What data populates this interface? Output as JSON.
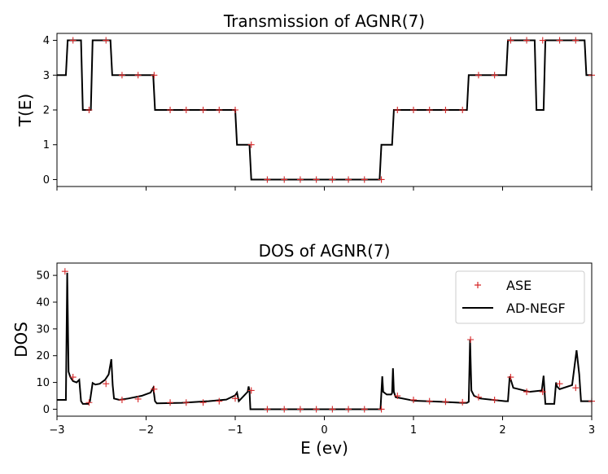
{
  "chart_data": [
    {
      "type": "line",
      "title": "Transmission of AGNR(7)",
      "xlabel": "",
      "ylabel": "T(E)",
      "xlim": [
        -3,
        3
      ],
      "ylim": [
        -0.2,
        4.2
      ],
      "x_ticks": [
        -3,
        -2,
        -1,
        0,
        1,
        2,
        3
      ],
      "y_ticks": [
        0,
        1,
        2,
        3,
        4
      ],
      "y_tick_labels": [
        "0",
        "1",
        "2",
        "3",
        "4"
      ],
      "series": [
        {
          "name": "AD-NEGF",
          "style": "line",
          "color": "#000000",
          "x": [
            -3.0,
            -2.9,
            -2.88,
            -2.73,
            -2.71,
            -2.62,
            -2.6,
            -2.4,
            -2.38,
            -1.92,
            -1.9,
            -1.0,
            -0.98,
            -0.84,
            -0.82,
            0.62,
            0.64,
            0.76,
            0.78,
            1.6,
            1.62,
            2.04,
            2.06,
            2.36,
            2.38,
            2.46,
            2.48,
            2.76,
            2.78,
            2.92,
            2.94,
            3.0
          ],
          "y": [
            3,
            3,
            4,
            4,
            2,
            2,
            4,
            4,
            3,
            3,
            2,
            2,
            1,
            1,
            0,
            0,
            1,
            1,
            2,
            2,
            3,
            3,
            4,
            4,
            2,
            2,
            4,
            4,
            4,
            4,
            3,
            3
          ]
        },
        {
          "name": "ASE",
          "style": "marker",
          "marker": "+",
          "color": "#d62728",
          "x": [
            -2.82,
            -2.64,
            -2.45,
            -2.27,
            -2.09,
            -1.91,
            -1.73,
            -1.55,
            -1.36,
            -1.18,
            -1.0,
            -0.82,
            -0.64,
            -0.45,
            -0.27,
            -0.09,
            0.09,
            0.27,
            0.45,
            0.64,
            0.82,
            1.0,
            1.18,
            1.36,
            1.55,
            1.73,
            1.91,
            2.09,
            2.27,
            2.45,
            2.64,
            2.82,
            3.0
          ],
          "y": [
            4,
            2,
            4,
            3,
            3,
            3,
            2,
            2,
            2,
            2,
            2,
            1,
            0,
            0,
            0,
            0,
            0,
            0,
            0,
            0,
            2,
            2,
            2,
            2,
            2,
            3,
            3,
            4,
            4,
            4,
            4,
            4,
            3
          ]
        }
      ]
    },
    {
      "type": "line",
      "title": "DOS of AGNR(7)",
      "xlabel": "E (ev)",
      "ylabel": "DOS",
      "xlim": [
        -3,
        3
      ],
      "ylim": [
        -2.6,
        54.6
      ],
      "x_ticks": [
        -3,
        -2,
        -1,
        0,
        1,
        2,
        3
      ],
      "x_tick_labels": [
        "−3",
        "−2",
        "−1",
        "0",
        "1",
        "2",
        "3"
      ],
      "y_ticks": [
        0,
        10,
        20,
        30,
        40,
        50
      ],
      "y_tick_labels": [
        "0",
        "10",
        "20",
        "30",
        "40",
        "50"
      ],
      "legend": {
        "position": "top-right",
        "entries": [
          {
            "label": "ASE",
            "marker": "+",
            "color": "#d62728"
          },
          {
            "label": "AD-NEGF",
            "line": true,
            "color": "#000000"
          }
        ]
      },
      "series": [
        {
          "name": "AD-NEGF",
          "style": "line",
          "color": "#000000",
          "x": [
            -3.0,
            -2.9,
            -2.885,
            -2.87,
            -2.85,
            -2.82,
            -2.78,
            -2.75,
            -2.73,
            -2.71,
            -2.65,
            -2.63,
            -2.6,
            -2.57,
            -2.52,
            -2.46,
            -2.42,
            -2.39,
            -2.375,
            -2.36,
            -2.3,
            -2.2,
            -2.05,
            -1.95,
            -1.92,
            -1.9,
            -1.88,
            -1.6,
            -1.3,
            -1.1,
            -1.0,
            -0.98,
            -0.96,
            -0.86,
            -0.85,
            -0.84,
            -0.83,
            -0.8,
            0.62,
            0.63,
            0.65,
            0.66,
            0.7,
            0.75,
            0.76,
            0.77,
            0.78,
            0.8,
            1.0,
            1.3,
            1.55,
            1.6,
            1.62,
            1.635,
            1.65,
            1.68,
            1.75,
            2.03,
            2.06,
            2.08,
            2.12,
            2.3,
            2.44,
            2.46,
            2.47,
            2.48,
            2.58,
            2.6,
            2.61,
            2.64,
            2.78,
            2.83,
            2.86,
            2.88,
            2.92,
            3.0
          ],
          "y": [
            3.5,
            3.5,
            51,
            14,
            12,
            10.5,
            10,
            11,
            3,
            2,
            2,
            3,
            9.8,
            9.2,
            9.5,
            11,
            13,
            18.7,
            9,
            4,
            3.5,
            4,
            5,
            6.2,
            8,
            3,
            2.2,
            2.4,
            3,
            3.6,
            5.2,
            6.2,
            3,
            6.5,
            8.5,
            7,
            0,
            0,
            0,
            0,
            12.3,
            6.5,
            5.5,
            5.5,
            6,
            15.3,
            6.5,
            4.5,
            3.2,
            2.8,
            2.4,
            2.4,
            2.8,
            26,
            7,
            5,
            4,
            3,
            3,
            12.3,
            8,
            6.5,
            7,
            12.5,
            7,
            2,
            2,
            10,
            8.5,
            7.5,
            9,
            22,
            13,
            3,
            3,
            3
          ]
        },
        {
          "name": "ASE",
          "style": "marker",
          "marker": "+",
          "color": "#d62728",
          "x": [
            -2.91,
            -2.82,
            -2.64,
            -2.45,
            -2.27,
            -2.09,
            -1.91,
            -1.73,
            -1.55,
            -1.36,
            -1.18,
            -1.0,
            -0.82,
            -0.64,
            -0.45,
            -0.27,
            -0.09,
            0.09,
            0.27,
            0.45,
            0.64,
            0.82,
            1.0,
            1.18,
            1.36,
            1.55,
            1.64,
            1.73,
            1.91,
            2.09,
            2.27,
            2.45,
            2.64,
            2.82,
            3.0
          ],
          "y": [
            51.5,
            12,
            2.5,
            9.5,
            3.5,
            3.8,
            7.5,
            2.5,
            2.5,
            2.5,
            3.0,
            4.0,
            7.0,
            0,
            0,
            0,
            0,
            0,
            0,
            0,
            0,
            5,
            3.5,
            3,
            2.8,
            2.6,
            26,
            4.5,
            3.5,
            12,
            6.5,
            6.5,
            9.5,
            8,
            3
          ]
        }
      ]
    }
  ]
}
